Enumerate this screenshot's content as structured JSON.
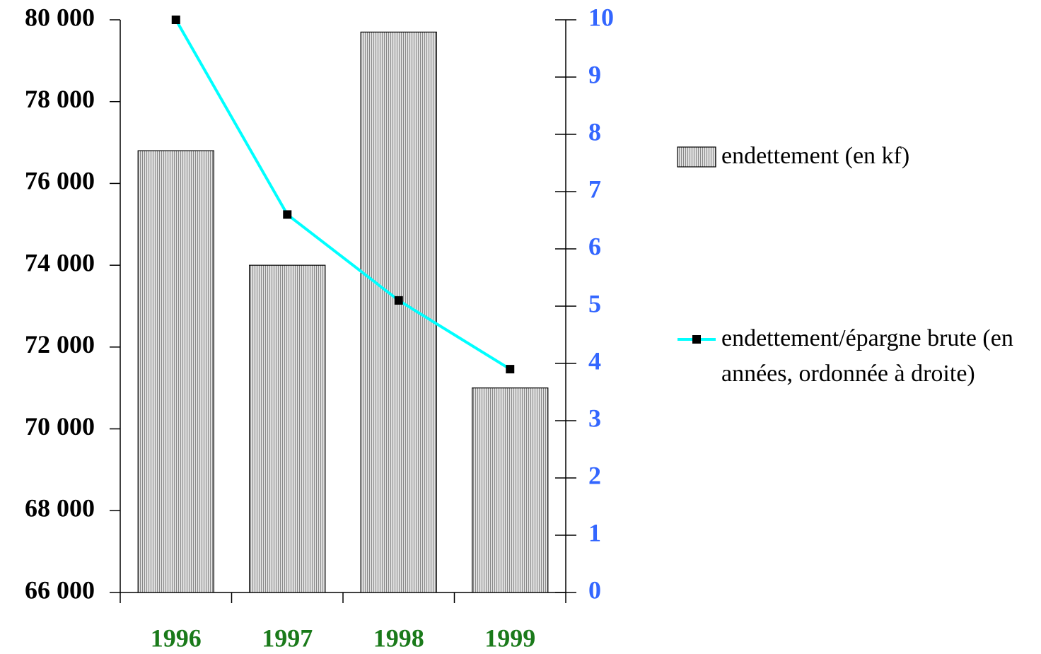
{
  "chart_data": {
    "type": "bar",
    "categories": [
      "1996",
      "1997",
      "1998",
      "1999"
    ],
    "series": [
      {
        "name": "endettement (en kf)",
        "color": "#c8c8c8",
        "values": [
          76800,
          74000,
          79700,
          71000
        ]
      },
      {
        "name": "endettement/épargne brute (en années, ordonnée à droite)",
        "type": "line",
        "axis": "y2",
        "color": "#00ffff",
        "values": [
          10,
          6.6,
          5.1,
          3.9
        ]
      }
    ],
    "ylim": [
      66000,
      80000
    ],
    "yticks": [
      {
        "value": 66000,
        "label": "66 000"
      },
      {
        "value": 68000,
        "label": "68 000"
      },
      {
        "value": 70000,
        "label": "70 000"
      },
      {
        "value": 72000,
        "label": "72 000"
      },
      {
        "value": 74000,
        "label": "74 000"
      },
      {
        "value": 76000,
        "label": "76 000"
      },
      {
        "value": 78000,
        "label": "78 000"
      },
      {
        "value": 80000,
        "label": "80 000"
      }
    ],
    "y2lim": [
      0,
      10
    ],
    "y2ticks": [
      0,
      1,
      2,
      3,
      4,
      5,
      6,
      7,
      8,
      9,
      10
    ],
    "grid": false
  }
}
